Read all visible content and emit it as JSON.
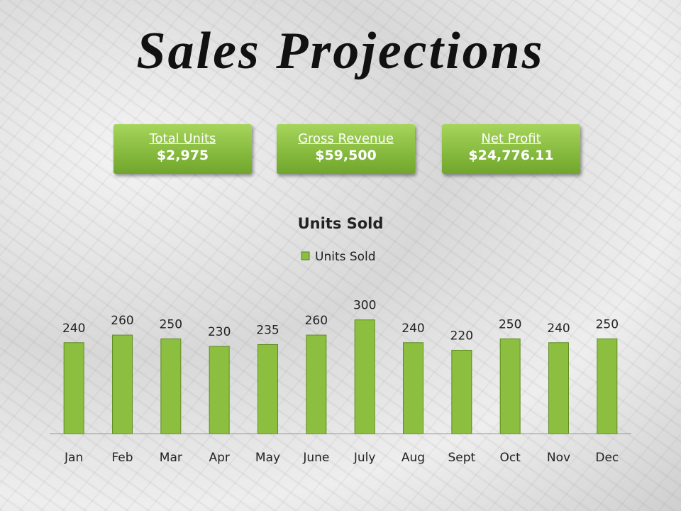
{
  "header": {
    "title": "Sales Projections"
  },
  "kpis": [
    {
      "label": "Total Units",
      "value": "$2,975"
    },
    {
      "label": "Gross Revenue",
      "value": "$59,500"
    },
    {
      "label": "Net Profit",
      "value": "$24,776.11"
    }
  ],
  "chart_data": {
    "type": "bar",
    "title": "Units Sold",
    "categories": [
      "Jan",
      "Feb",
      "Mar",
      "Apr",
      "May",
      "June",
      "July",
      "Aug",
      "Sept",
      "Oct",
      "Nov",
      "Dec"
    ],
    "series": [
      {
        "name": "Units Sold",
        "color": "#8cbf3f",
        "values": [
          240,
          260,
          250,
          230,
          235,
          260,
          300,
          240,
          220,
          250,
          240,
          250
        ]
      }
    ],
    "ylim": [
      0,
      350
    ],
    "legend": "top"
  }
}
